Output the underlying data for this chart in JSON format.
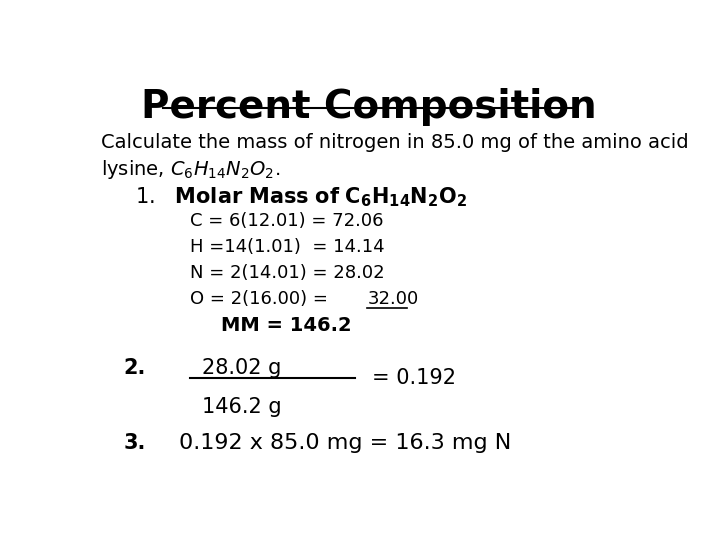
{
  "title": "Percent Composition",
  "bg_color": "#ffffff",
  "text_color": "#000000",
  "title_fontsize": 28,
  "body_fontsize": 14,
  "step2_numerator": "28.02 g",
  "step2_denominator": "146.2 g",
  "step2_result": "= 0.192",
  "step3_text": "0.192 x 85.0 mg = 16.3 mg N"
}
